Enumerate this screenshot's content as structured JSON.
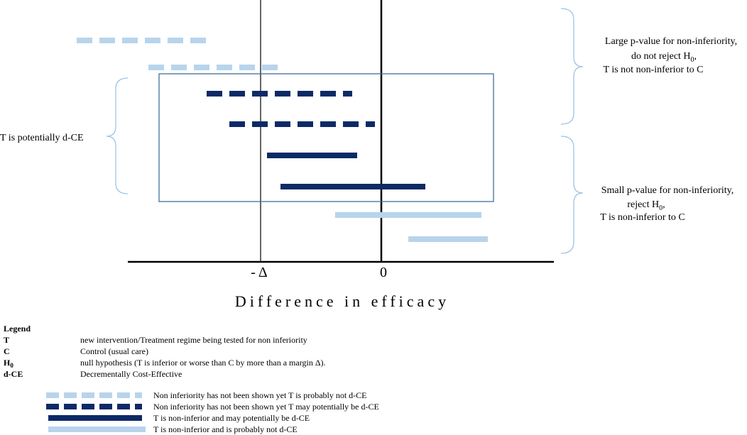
{
  "axis": {
    "tick_minus_delta": "- Δ",
    "tick_zero": "0",
    "label": "Difference in efficacy"
  },
  "annotations": {
    "left": "T is potentially d-CE",
    "upper_right": {
      "line1": "Large p-value for non-inferiority,",
      "line2": "do not reject H",
      "line2_sub": "0",
      "line2_end": ",",
      "line3": "T is not non-inferior to C"
    },
    "lower_right": {
      "line1": "Small p-value for non-inferiority,",
      "line2": "reject H",
      "line2_sub": "0",
      "line2_end": ",",
      "line3": "T is non-inferior to C"
    }
  },
  "legend": {
    "title": "Legend",
    "rows": [
      {
        "key": "T",
        "text": "new intervention/Treatment regime being tested for non inferiority"
      },
      {
        "key": "C",
        "text": "Control (usual care)"
      },
      {
        "key": "H",
        "key_sub": "0",
        "text": "null hypothesis (T is inferior or worse than C by more than  a margin Δ)."
      },
      {
        "key": "d-CE",
        "text": "Decrementally Cost-Effective"
      }
    ],
    "lines": [
      "Non inferiority has not been shown yet T is probably not d-CE",
      "Non inferiority has not been shown yet T may potentially be d-CE",
      "T is non-inferior and may potentially be d-CE",
      "T is non-inferior and is probably not d-CE"
    ]
  }
}
